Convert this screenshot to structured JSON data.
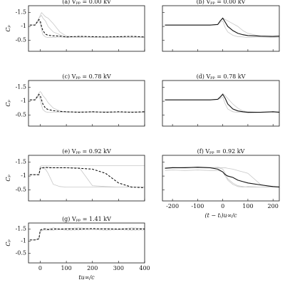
{
  "chart_data": [
    {
      "type": "line",
      "title": "(a) Vₚₚ = 0.00 kV",
      "ylabel": "Cₚ",
      "x": [
        -40,
        -20,
        -5,
        0,
        5,
        10,
        20,
        30,
        50,
        75,
        100,
        150,
        200,
        250,
        300,
        350,
        400
      ],
      "xlim": [
        -45,
        400
      ],
      "xticks": [
        0,
        100,
        200,
        300,
        400
      ],
      "xtick_labels": false,
      "ylim": [
        -0.1,
        -1.75
      ],
      "yticks": [
        -1.5,
        -1,
        -0.5
      ],
      "ytick_labels": true,
      "series": [
        {
          "color": "#c8c8c8",
          "dash": false,
          "values": [
            -1.05,
            -1.05,
            -1.3,
            -1.35,
            -1.4,
            -1.3,
            -1.2,
            -1.0,
            -0.8,
            -0.7,
            -0.62,
            -0.6,
            -0.62,
            -0.6,
            -0.63,
            -0.6,
            -0.62
          ]
        },
        {
          "color": "#c8c8c8",
          "dash": false,
          "values": [
            -1.05,
            -1.05,
            -1.2,
            -1.1,
            -0.9,
            -0.7,
            -0.62,
            -0.6,
            -0.6,
            -0.62,
            -0.6,
            -0.63,
            -0.6,
            -0.62,
            -0.6,
            -0.61,
            -0.6
          ]
        },
        {
          "color": "#c8c8c8",
          "dash": false,
          "values": [
            -1.05,
            -1.05,
            -1.3,
            -1.4,
            -1.5,
            -1.45,
            -1.35,
            -1.3,
            -1.1,
            -0.8,
            -0.65,
            -0.62,
            -0.6,
            -0.62,
            -0.6,
            -0.62,
            -0.61
          ]
        },
        {
          "color": "#111111",
          "dash": true,
          "values": [
            -1.05,
            -1.05,
            -1.25,
            -1.2,
            -1.0,
            -0.85,
            -0.72,
            -0.68,
            -0.66,
            -0.65,
            -0.62,
            -0.64,
            -0.63,
            -0.62,
            -0.63,
            -0.64,
            -0.62
          ]
        }
      ]
    },
    {
      "type": "line",
      "title": "(b) Vₚₚ = 0.00 kV",
      "x": [
        -230,
        -200,
        -150,
        -100,
        -50,
        -20,
        -10,
        0,
        10,
        20,
        40,
        60,
        80,
        100,
        150,
        200,
        225
      ],
      "xlim": [
        -240,
        225
      ],
      "xticks": [
        -200,
        -100,
        0,
        100,
        200
      ],
      "xtick_labels": false,
      "ylim": [
        -0.1,
        -1.75
      ],
      "yticks": [
        -1.5,
        -1,
        -0.5
      ],
      "ytick_labels": false,
      "series": [
        {
          "color": "#c8c8c8",
          "dash": false,
          "values": [
            -1.05,
            -1.05,
            -1.05,
            -1.05,
            -1.05,
            -1.08,
            -1.2,
            -1.3,
            -1.25,
            -1.2,
            -1.1,
            -1.0,
            -0.85,
            -0.75,
            -0.65,
            -0.62,
            -0.63
          ]
        },
        {
          "color": "#c8c8c8",
          "dash": false,
          "values": [
            -1.05,
            -1.05,
            -1.05,
            -1.05,
            -1.05,
            -1.06,
            -1.15,
            -1.2,
            -0.95,
            -0.8,
            -0.68,
            -0.63,
            -0.62,
            -0.6,
            -0.62,
            -0.6,
            -0.61
          ]
        },
        {
          "color": "#111111",
          "dash": false,
          "values": [
            -1.05,
            -1.05,
            -1.05,
            -1.05,
            -1.05,
            -1.07,
            -1.2,
            -1.3,
            -1.15,
            -1.0,
            -0.85,
            -0.75,
            -0.7,
            -0.67,
            -0.65,
            -0.64,
            -0.65
          ]
        }
      ]
    },
    {
      "type": "line",
      "title": "(c) Vₚₚ = 0.78 kV",
      "ylabel": "Cₚ",
      "x": [
        -40,
        -20,
        -5,
        0,
        5,
        10,
        20,
        30,
        50,
        75,
        100,
        150,
        200,
        250,
        300,
        350,
        400
      ],
      "xlim": [
        -45,
        400
      ],
      "xticks": [
        0,
        100,
        200,
        300,
        400
      ],
      "xtick_labels": false,
      "ylim": [
        -0.1,
        -1.75
      ],
      "yticks": [
        -1.5,
        -1,
        -0.5
      ],
      "ytick_labels": true,
      "series": [
        {
          "color": "#c8c8c8",
          "dash": false,
          "values": [
            -1.05,
            -1.05,
            -1.3,
            -1.35,
            -1.3,
            -1.2,
            -1.1,
            -0.95,
            -0.75,
            -0.65,
            -0.6,
            -0.62,
            -0.6,
            -0.62,
            -0.6,
            -0.61,
            -0.6
          ]
        },
        {
          "color": "#c8c8c8",
          "dash": false,
          "values": [
            -1.05,
            -1.05,
            -1.2,
            -1.05,
            -0.85,
            -0.7,
            -0.62,
            -0.6,
            -0.6,
            -0.6,
            -0.62,
            -0.6,
            -0.62,
            -0.6,
            -0.6,
            -0.62,
            -0.6
          ]
        },
        {
          "color": "#111111",
          "dash": true,
          "values": [
            -1.05,
            -1.05,
            -1.25,
            -1.2,
            -1.05,
            -0.9,
            -0.75,
            -0.7,
            -0.66,
            -0.63,
            -0.62,
            -0.6,
            -0.62,
            -0.6,
            -0.62,
            -0.6,
            -0.62
          ]
        }
      ]
    },
    {
      "type": "line",
      "title": "(d) Vₚₚ = 0.78 kV",
      "x": [
        -230,
        -200,
        -150,
        -100,
        -50,
        -20,
        -10,
        0,
        10,
        20,
        40,
        60,
        80,
        100,
        150,
        200,
        225
      ],
      "xlim": [
        -240,
        225
      ],
      "xticks": [
        -200,
        -100,
        0,
        100,
        200
      ],
      "xtick_labels": false,
      "ylim": [
        -0.1,
        -1.75
      ],
      "yticks": [
        -1.5,
        -1,
        -0.5
      ],
      "ytick_labels": false,
      "series": [
        {
          "color": "#c8c8c8",
          "dash": false,
          "values": [
            -1.05,
            -1.05,
            -1.05,
            -1.05,
            -1.05,
            -1.08,
            -1.18,
            -1.28,
            -1.2,
            -1.1,
            -0.9,
            -0.75,
            -0.65,
            -0.62,
            -0.6,
            -0.62,
            -0.6
          ]
        },
        {
          "color": "#c8c8c8",
          "dash": false,
          "values": [
            -1.05,
            -1.05,
            -1.05,
            -1.05,
            -1.05,
            -1.06,
            -1.1,
            -1.15,
            -0.9,
            -0.72,
            -0.62,
            -0.6,
            -0.6,
            -0.58,
            -0.6,
            -0.6,
            -0.62
          ]
        },
        {
          "color": "#111111",
          "dash": false,
          "values": [
            -1.05,
            -1.05,
            -1.05,
            -1.05,
            -1.05,
            -1.07,
            -1.15,
            -1.25,
            -1.1,
            -0.9,
            -0.72,
            -0.65,
            -0.62,
            -0.6,
            -0.6,
            -0.62,
            -0.6
          ]
        }
      ]
    },
    {
      "type": "line",
      "title": "(e) Vₚₚ = 0.92 kV",
      "ylabel": "Cₚ",
      "x": [
        -40,
        -20,
        -5,
        0,
        5,
        10,
        20,
        30,
        50,
        75,
        100,
        150,
        200,
        250,
        300,
        350,
        400
      ],
      "xlim": [
        -45,
        400
      ],
      "xticks": [
        0,
        100,
        200,
        300,
        400
      ],
      "xtick_labels": false,
      "ylim": [
        -0.1,
        -1.75
      ],
      "yticks": [
        -1.5,
        -1,
        -0.5
      ],
      "ytick_labels": true,
      "series": [
        {
          "color": "#c8c8c8",
          "dash": false,
          "values": [
            -1.05,
            -1.05,
            -1.05,
            -1.3,
            -1.3,
            -1.28,
            -1.25,
            -1.1,
            -0.7,
            -0.62,
            -0.6,
            -0.6,
            -0.6,
            -0.6,
            -0.6,
            -0.6,
            -0.6
          ]
        },
        {
          "color": "#c8c8c8",
          "dash": false,
          "values": [
            -1.05,
            -1.05,
            -1.05,
            -1.3,
            -1.32,
            -1.3,
            -1.3,
            -1.32,
            -1.3,
            -1.3,
            -1.3,
            -1.3,
            -0.65,
            -0.62,
            -0.6,
            -0.6,
            -0.6
          ]
        },
        {
          "color": "#c8c8c8",
          "dash": false,
          "values": [
            -1.05,
            -1.05,
            -1.05,
            -1.35,
            -1.38,
            -1.38,
            -1.38,
            -1.38,
            -1.38,
            -1.38,
            -1.38,
            -1.38,
            -1.38,
            -1.38,
            -1.38,
            -1.38,
            -1.38
          ]
        },
        {
          "color": "#111111",
          "dash": true,
          "values": [
            -1.05,
            -1.05,
            -1.05,
            -1.28,
            -1.3,
            -1.3,
            -1.32,
            -1.3,
            -1.3,
            -1.3,
            -1.3,
            -1.28,
            -1.25,
            -1.1,
            -0.75,
            -0.6,
            -0.58
          ]
        }
      ]
    },
    {
      "type": "line",
      "title": "(f) Vₚₚ = 0.92 kV",
      "xlabel": "(t − tᵢ)u∞/c",
      "x": [
        -230,
        -200,
        -150,
        -100,
        -50,
        -20,
        -10,
        0,
        10,
        20,
        40,
        60,
        80,
        100,
        150,
        200,
        225
      ],
      "xlim": [
        -240,
        225
      ],
      "xticks": [
        -200,
        -100,
        0,
        100,
        200
      ],
      "xtick_labels": true,
      "ylim": [
        -0.1,
        -1.75
      ],
      "yticks": [
        -1.5,
        -1,
        -0.5
      ],
      "ytick_labels": false,
      "series": [
        {
          "color": "#c8c8c8",
          "dash": false,
          "values": [
            -1.3,
            -1.32,
            -1.3,
            -1.32,
            -1.3,
            -1.3,
            -1.28,
            -1.25,
            -1.1,
            -0.9,
            -0.75,
            -0.65,
            -0.62,
            -0.6,
            -0.6,
            -0.62,
            -0.6
          ]
        },
        {
          "color": "#c8c8c8",
          "dash": false,
          "values": [
            -1.3,
            -1.3,
            -1.32,
            -1.3,
            -1.3,
            -1.32,
            -1.3,
            -1.3,
            -1.3,
            -1.28,
            -1.25,
            -1.2,
            -1.15,
            -1.1,
            -0.7,
            -0.6,
            -0.6
          ]
        },
        {
          "color": "#c8c8c8",
          "dash": false,
          "values": [
            -1.2,
            -1.22,
            -1.2,
            -1.22,
            -1.2,
            -1.2,
            -1.18,
            -1.15,
            -1.0,
            -0.85,
            -0.7,
            -0.62,
            -0.6,
            -0.62,
            -0.6,
            -0.6,
            -0.62
          ]
        },
        {
          "color": "#111111",
          "dash": false,
          "values": [
            -1.28,
            -1.3,
            -1.3,
            -1.32,
            -1.3,
            -1.25,
            -1.2,
            -1.15,
            -1.05,
            -1.0,
            -0.95,
            -0.85,
            -0.8,
            -0.75,
            -0.68,
            -0.62,
            -0.6
          ]
        }
      ]
    },
    {
      "type": "line",
      "title": "(g) Vₚₚ = 1.41 kV",
      "ylabel": "Cₚ",
      "xlabel": "tu∞/c",
      "x": [
        -40,
        -20,
        -5,
        0,
        5,
        10,
        20,
        30,
        50,
        75,
        100,
        150,
        200,
        250,
        300,
        350,
        400
      ],
      "xlim": [
        -45,
        400
      ],
      "xticks": [
        0,
        100,
        200,
        300,
        400
      ],
      "xtick_labels": true,
      "ylim": [
        -0.1,
        -1.75
      ],
      "yticks": [
        -1.5,
        -1,
        -0.5
      ],
      "ytick_labels": true,
      "series": [
        {
          "color": "#c8c8c8",
          "dash": false,
          "values": [
            -1.05,
            -1.05,
            -1.1,
            -1.42,
            -1.45,
            -1.48,
            -1.52,
            -1.5,
            -1.55,
            -1.5,
            -1.52,
            -1.55,
            -1.5,
            -1.53,
            -1.5,
            -1.55,
            -1.52
          ]
        },
        {
          "color": "#c8c8c8",
          "dash": false,
          "values": [
            -1.05,
            -1.05,
            -1.08,
            -1.4,
            -1.42,
            -1.45,
            -1.45,
            -1.47,
            -1.45,
            -1.48,
            -1.45,
            -1.46,
            -1.48,
            -1.45,
            -1.47,
            -1.45,
            -1.46
          ]
        },
        {
          "color": "#111111",
          "dash": true,
          "values": [
            -1.05,
            -1.05,
            -1.1,
            -1.45,
            -1.48,
            -1.5,
            -1.5,
            -1.48,
            -1.5,
            -1.5,
            -1.5,
            -1.5,
            -1.52,
            -1.5,
            -1.5,
            -1.5,
            -1.5
          ]
        }
      ]
    }
  ]
}
